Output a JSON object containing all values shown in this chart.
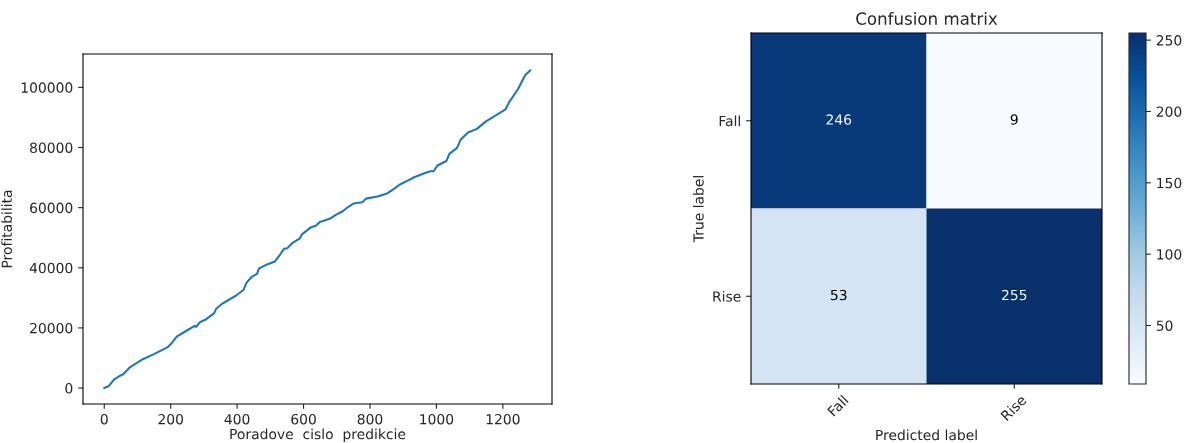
{
  "chart_data": [
    {
      "type": "line",
      "xlabel": "Poradove  cislo  predikcie",
      "ylabel": "Profitabilita",
      "xlim": [
        -64,
        1348
      ],
      "ylim": [
        -5300,
        111100
      ],
      "xticks": [
        0,
        200,
        400,
        600,
        800,
        1000,
        1200
      ],
      "yticks": [
        0,
        20000,
        40000,
        60000,
        80000,
        100000
      ],
      "grid": false,
      "legend": false,
      "series": [
        {
          "color": "#1f77b4",
          "x": [
            0,
            14,
            30,
            46,
            57,
            78,
            116,
            148,
            191,
            202,
            218,
            245,
            272,
            277,
            288,
            304,
            331,
            337,
            353,
            396,
            419,
            428,
            444,
            460,
            466,
            492,
            514,
            530,
            541,
            551,
            567,
            589,
            595,
            623,
            637,
            649,
            681,
            697,
            718,
            734,
            751,
            777,
            788,
            826,
            853,
            869,
            890,
            912,
            933,
            966,
            982,
            992,
            1003,
            1030,
            1039,
            1062,
            1073,
            1095,
            1122,
            1148,
            1191,
            1208,
            1219,
            1245,
            1267,
            1283
          ],
          "values": [
            0,
            700,
            2900,
            4000,
            4600,
            7000,
            9600,
            11200,
            13600,
            14800,
            17100,
            18900,
            20700,
            20400,
            21900,
            22700,
            24900,
            26400,
            27900,
            30700,
            32600,
            35000,
            37000,
            38000,
            39800,
            41200,
            42100,
            44500,
            46300,
            46500,
            48300,
            49800,
            51100,
            53500,
            54000,
            55200,
            56400,
            57600,
            58800,
            60200,
            61400,
            61800,
            63000,
            63800,
            64800,
            66000,
            67700,
            68900,
            70100,
            71500,
            72100,
            72100,
            74000,
            75500,
            77900,
            79900,
            82600,
            85000,
            86200,
            88600,
            91500,
            92700,
            95100,
            99300,
            104000,
            105700
          ]
        }
      ]
    },
    {
      "type": "heatmap",
      "title": "Confusion matrix",
      "xlabel": "Predicted label",
      "ylabel": "True label",
      "categories": [
        "Fall",
        "Rise"
      ],
      "y_categories": [
        "Fall",
        "Rise"
      ],
      "cells": [
        [
          246,
          9
        ],
        [
          53,
          255
        ]
      ],
      "clim": [
        9,
        255
      ],
      "cticks": [
        50,
        100,
        150,
        200,
        250
      ],
      "data_labels": true
    }
  ]
}
